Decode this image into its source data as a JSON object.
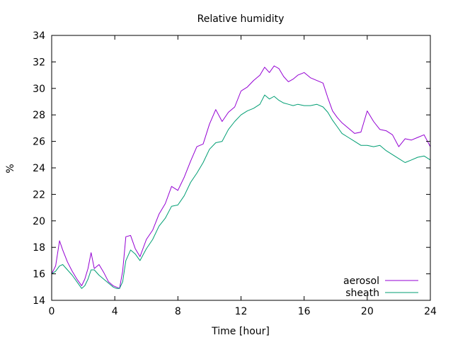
{
  "chart_data": {
    "type": "line",
    "title": "Relative humidity",
    "xlabel": "Time [hour]",
    "ylabel": "%",
    "xlim": [
      0,
      24
    ],
    "ylim": [
      14,
      34
    ],
    "xticks": [
      0,
      4,
      8,
      12,
      16,
      20,
      24
    ],
    "yticks": [
      14,
      16,
      18,
      20,
      22,
      24,
      26,
      28,
      30,
      32,
      34
    ],
    "grid": false,
    "legend_position": "bottom-right",
    "series": [
      {
        "name": "aerosol",
        "color": "#9400d3",
        "x": [
          0,
          0.25,
          0.5,
          0.7,
          1.0,
          1.3,
          1.6,
          1.9,
          2.1,
          2.3,
          2.5,
          2.7,
          3.0,
          3.3,
          3.6,
          3.9,
          4.1,
          4.3,
          4.5,
          4.7,
          5.0,
          5.3,
          5.6,
          6.0,
          6.4,
          6.8,
          7.2,
          7.6,
          8.0,
          8.4,
          8.8,
          9.2,
          9.6,
          10.0,
          10.4,
          10.8,
          11.2,
          11.6,
          12.0,
          12.4,
          12.8,
          13.2,
          13.5,
          13.8,
          14.1,
          14.4,
          14.7,
          15.0,
          15.3,
          15.6,
          16.0,
          16.4,
          16.8,
          17.2,
          17.5,
          17.8,
          18.1,
          18.4,
          18.8,
          19.2,
          19.6,
          20.0,
          20.4,
          20.8,
          21.2,
          21.6,
          22.0,
          22.4,
          22.8,
          23.2,
          23.6,
          24.0
        ],
        "y": [
          16.0,
          16.6,
          18.5,
          17.8,
          16.9,
          16.2,
          15.6,
          15.1,
          15.6,
          16.4,
          17.6,
          16.4,
          16.7,
          16.1,
          15.4,
          15.1,
          15.0,
          14.9,
          16.2,
          18.8,
          18.9,
          17.9,
          17.3,
          18.6,
          19.3,
          20.5,
          21.3,
          22.6,
          22.3,
          23.3,
          24.5,
          25.6,
          25.8,
          27.3,
          28.4,
          27.5,
          28.2,
          28.6,
          29.8,
          30.1,
          30.6,
          31.0,
          31.6,
          31.2,
          31.7,
          31.5,
          30.9,
          30.5,
          30.7,
          31.0,
          31.2,
          30.8,
          30.6,
          30.4,
          29.3,
          28.3,
          27.8,
          27.4,
          27.0,
          26.6,
          26.7,
          28.3,
          27.5,
          26.9,
          26.8,
          26.5,
          25.6,
          26.2,
          26.1,
          26.3,
          26.5,
          25.6
        ]
      },
      {
        "name": "sheath",
        "color": "#009e73",
        "x": [
          0,
          0.25,
          0.5,
          0.7,
          1.0,
          1.3,
          1.6,
          1.9,
          2.1,
          2.3,
          2.5,
          2.7,
          3.0,
          3.3,
          3.6,
          3.9,
          4.1,
          4.3,
          4.5,
          4.7,
          5.0,
          5.3,
          5.6,
          6.0,
          6.4,
          6.8,
          7.2,
          7.6,
          8.0,
          8.4,
          8.8,
          9.2,
          9.6,
          10.0,
          10.4,
          10.8,
          11.2,
          11.6,
          12.0,
          12.4,
          12.8,
          13.2,
          13.5,
          13.8,
          14.1,
          14.4,
          14.7,
          15.0,
          15.3,
          15.6,
          16.0,
          16.4,
          16.8,
          17.2,
          17.5,
          17.8,
          18.1,
          18.4,
          18.8,
          19.2,
          19.6,
          20.0,
          20.4,
          20.8,
          21.2,
          21.6,
          22.0,
          22.4,
          22.8,
          23.2,
          23.6,
          24.0
        ],
        "y": [
          16.0,
          16.2,
          16.6,
          16.7,
          16.3,
          15.9,
          15.4,
          14.9,
          15.1,
          15.6,
          16.3,
          16.3,
          15.9,
          15.6,
          15.3,
          15.0,
          14.9,
          14.9,
          15.4,
          17.0,
          17.8,
          17.5,
          17.0,
          17.9,
          18.6,
          19.6,
          20.2,
          21.1,
          21.2,
          21.9,
          22.9,
          23.6,
          24.4,
          25.4,
          25.9,
          26.0,
          26.9,
          27.5,
          28.0,
          28.3,
          28.5,
          28.8,
          29.5,
          29.2,
          29.4,
          29.1,
          28.9,
          28.8,
          28.7,
          28.8,
          28.7,
          28.7,
          28.8,
          28.6,
          28.2,
          27.6,
          27.1,
          26.6,
          26.3,
          26.0,
          25.7,
          25.7,
          25.6,
          25.7,
          25.3,
          25.0,
          24.7,
          24.4,
          24.6,
          24.8,
          24.9,
          24.6
        ]
      }
    ]
  }
}
